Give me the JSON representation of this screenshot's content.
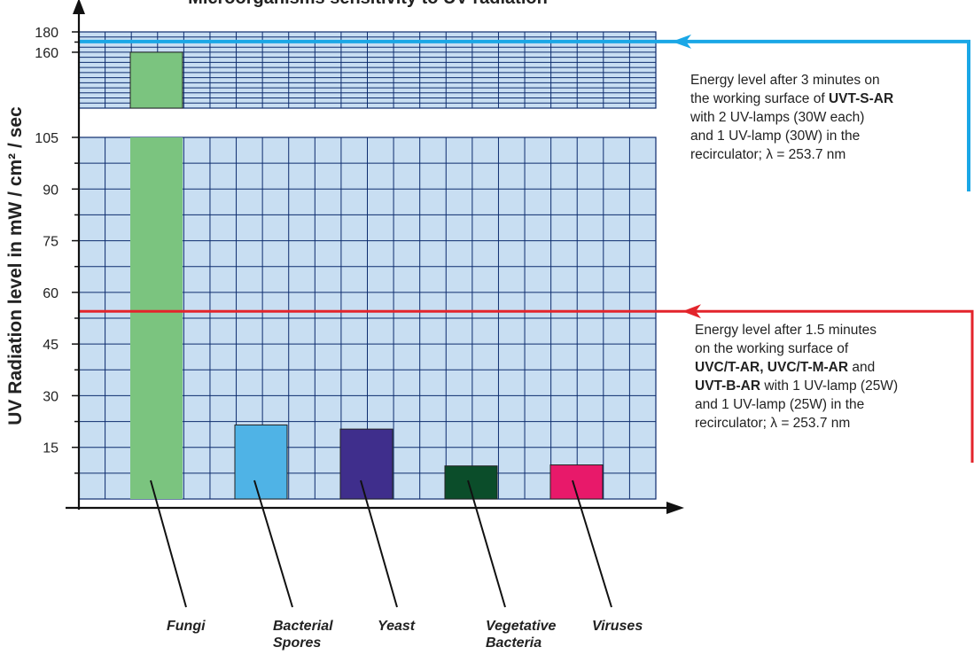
{
  "chart_data": {
    "type": "bar",
    "title": "Microorganisms sensitivity to UV radiation",
    "ylabel": "UV Radiation level in  mW / cm² / sec",
    "categories": [
      "Fungi",
      "Bacterial Spores",
      "Yeast",
      "Vegetative Bacteria",
      "Viruses"
    ],
    "category_lines": [
      [
        "Fungi"
      ],
      [
        "Bacterial",
        "Spores"
      ],
      [
        "Yeast"
      ],
      [
        "Vegetative",
        "Bacteria"
      ],
      [
        "Viruses"
      ]
    ],
    "values": [
      160,
      21.5,
      20.3,
      9.6,
      9.9
    ],
    "colors": [
      "#7bc47f",
      "#4fb3e6",
      "#3f2e8c",
      "#0b4d2a",
      "#e8196a"
    ],
    "axis_break": {
      "from": 105,
      "to": 150
    },
    "yticks_lower": [
      15,
      30,
      45,
      60,
      75,
      90,
      105
    ],
    "yticks_upper": [
      160,
      180
    ],
    "ylim": [
      0,
      180
    ],
    "grid": true,
    "reference_lines": [
      {
        "value": 170.5,
        "color": "#1aa7e6"
      },
      {
        "value": 54.5,
        "color": "#e3242b"
      }
    ]
  },
  "annotations": {
    "note1": {
      "line1": "Energy level after 3 minutes on",
      "line2_pre": "the working surface of ",
      "line2_bold": "UVT-S-AR",
      "line3": "with 2 UV-lamps (30W each)",
      "line4": "and 1 UV-lamp (30W) in the",
      "line5": "recirculator; λ = 253.7 nm"
    },
    "note2": {
      "line1": "Energy level after 1.5 minutes",
      "line2": "on the working surface of",
      "line3_bold": "UVC/T-AR, UVC/T-M-AR",
      "line3_post": " and",
      "line4_bold": "UVT-B-AR",
      "line4_post": " with 1 UV-lamp (25W)",
      "line5": "and 1 UV-lamp (25W) in the",
      "line6": "recirculator; λ = 253.7 nm"
    }
  }
}
